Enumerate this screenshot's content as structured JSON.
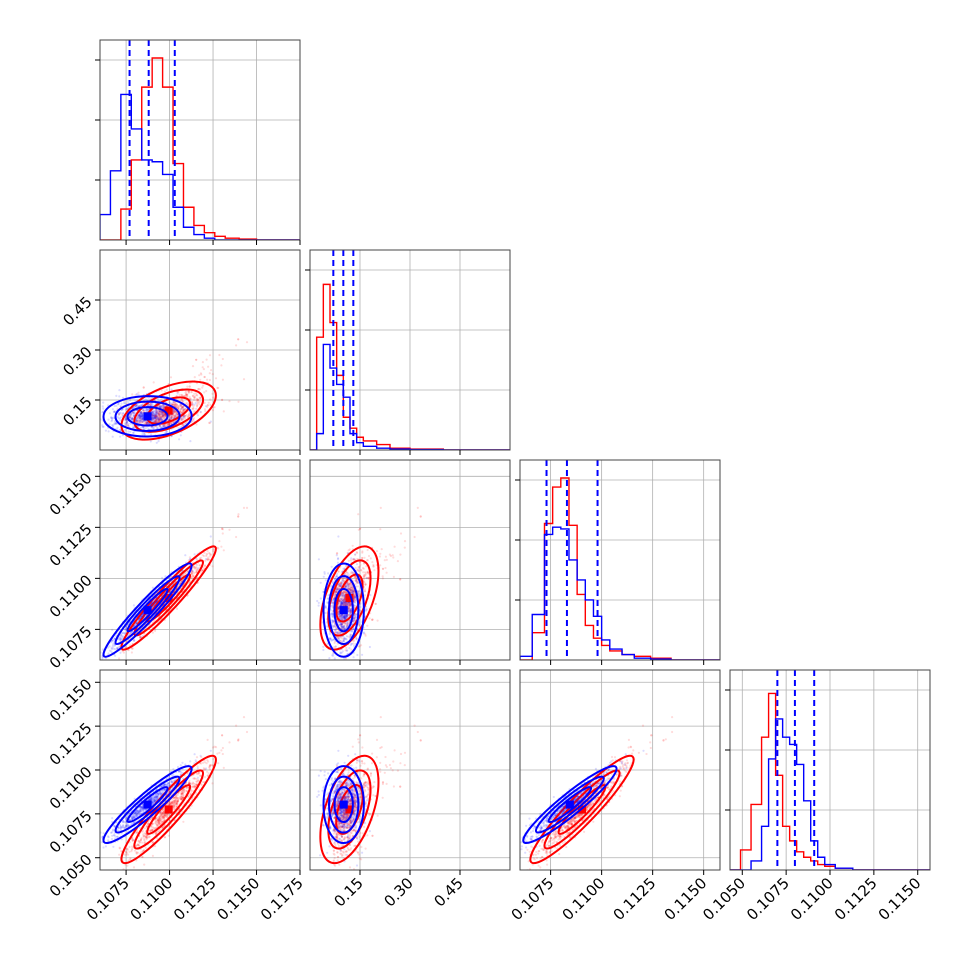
{
  "chart_data": {
    "type": "scatter",
    "title": "",
    "layout": "corner-plot",
    "parameters": [
      {
        "index": 0,
        "range": [
          0.106,
          0.1175
        ],
        "xticks": [
          "0.1075",
          "0.1100",
          "0.1125",
          "0.1150",
          "0.1175"
        ]
      },
      {
        "index": 1,
        "range": [
          0.0,
          0.6
        ],
        "ticks": [
          "0.15",
          "0.30",
          "0.45"
        ]
      },
      {
        "index": 2,
        "range": [
          0.106,
          0.1158
        ],
        "ticks": [
          "0.1075",
          "0.1100",
          "0.1125",
          "0.1150"
        ]
      },
      {
        "index": 3,
        "range": [
          0.1043,
          0.1157
        ],
        "ticks": [
          "0.1050",
          "0.1075",
          "0.1100",
          "0.1125",
          "0.1150"
        ]
      }
    ],
    "series": [
      {
        "name": "",
        "color": "#0000ff",
        "quantiles": [
          [
            0.1077,
            0.1088,
            0.1103
          ],
          [
            0.07,
            0.1,
            0.13
          ],
          [
            0.1073,
            0.1083,
            0.1098
          ],
          [
            0.107,
            0.108,
            0.1091
          ]
        ]
      },
      {
        "name": "",
        "color": "#ff0000",
        "quantiles": []
      }
    ],
    "histograms": [
      {
        "panel": "0-0",
        "edges": [
          0.106,
          0.1066,
          0.1072,
          0.1078,
          0.1084,
          0.109,
          0.1096,
          0.1102,
          0.1108,
          0.1114,
          0.112,
          0.1126,
          0.1132,
          0.114,
          0.115,
          0.1175
        ],
        "blue": [
          0.14,
          0.38,
          0.8,
          0.61,
          0.44,
          0.43,
          0.36,
          0.18,
          0.07,
          0.03,
          0.01,
          0.0,
          0.0,
          0.0,
          0.0
        ],
        "red": [
          0.0,
          0.0,
          0.17,
          0.44,
          0.84,
          1.0,
          0.84,
          0.42,
          0.18,
          0.08,
          0.04,
          0.02,
          0.01,
          0.005,
          0.0
        ]
      },
      {
        "panel": "1-1",
        "edges": [
          0.0,
          0.02,
          0.04,
          0.06,
          0.08,
          0.1,
          0.12,
          0.14,
          0.16,
          0.2,
          0.24,
          0.3,
          0.4,
          0.6
        ],
        "blue": [
          0.0,
          0.09,
          0.58,
          0.45,
          0.36,
          0.29,
          0.09,
          0.04,
          0.02,
          0.01,
          0.005,
          0.002,
          0.0
        ],
        "red": [
          0.0,
          0.62,
          0.91,
          0.7,
          0.41,
          0.18,
          0.12,
          0.07,
          0.05,
          0.03,
          0.01,
          0.005,
          0.0
        ]
      },
      {
        "panel": "2-2",
        "edges": [
          0.106,
          0.1066,
          0.1072,
          0.1076,
          0.108,
          0.1084,
          0.1088,
          0.1092,
          0.1096,
          0.11,
          0.1104,
          0.111,
          0.1116,
          0.1124,
          0.1134,
          0.1158
        ],
        "blue": [
          0.02,
          0.25,
          0.69,
          0.73,
          0.72,
          0.55,
          0.44,
          0.33,
          0.24,
          0.11,
          0.06,
          0.03,
          0.01,
          0.005,
          0.0
        ],
        "red": [
          0.0,
          0.15,
          0.75,
          0.95,
          1.0,
          0.74,
          0.36,
          0.19,
          0.12,
          0.08,
          0.05,
          0.03,
          0.02,
          0.01,
          0.0
        ]
      },
      {
        "panel": "3-3",
        "edges": [
          0.1043,
          0.1049,
          0.1055,
          0.1061,
          0.1065,
          0.1069,
          0.1073,
          0.1077,
          0.1081,
          0.1085,
          0.1089,
          0.1093,
          0.1097,
          0.1103,
          0.1113,
          0.1157
        ],
        "blue": [
          0.0,
          0.0,
          0.05,
          0.24,
          0.61,
          0.83,
          0.73,
          0.69,
          0.58,
          0.38,
          0.16,
          0.07,
          0.03,
          0.01,
          0.0
        ],
        "red": [
          0.0,
          0.11,
          0.36,
          0.73,
          0.97,
          0.52,
          0.24,
          0.16,
          0.1,
          0.07,
          0.05,
          0.03,
          0.02,
          0.01,
          0.0
        ]
      }
    ],
    "pair_clouds": {
      "blue": {
        "mean": [
          0.1087,
          0.1,
          0.1084,
          0.108
        ]
      },
      "red": {
        "mean": [
          0.1096,
          0.12,
          0.1087,
          0.1073
        ]
      }
    },
    "grid": true,
    "legend": ""
  }
}
